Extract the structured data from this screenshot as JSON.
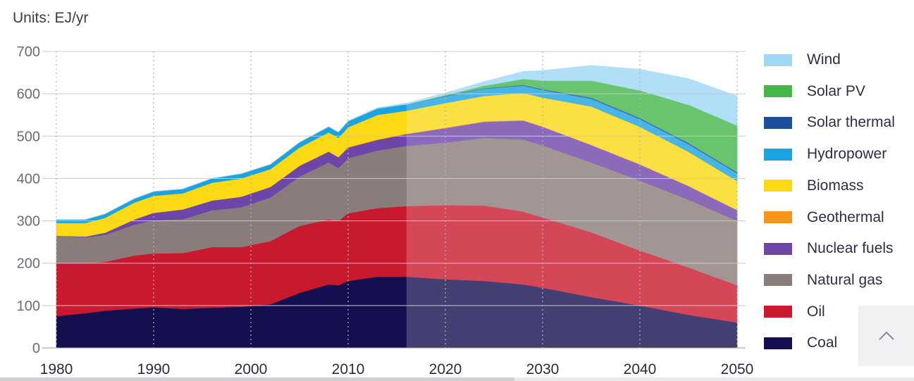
{
  "units_label": "Units: EJ/yr",
  "chart_data": {
    "type": "area",
    "stacked": true,
    "title": "",
    "units": "Units: EJ/yr",
    "xlabel": "",
    "ylabel": "",
    "xlim": [
      1980,
      2050
    ],
    "ylim": [
      0,
      700
    ],
    "x_ticks": [
      1980,
      1990,
      2000,
      2010,
      2020,
      2030,
      2040,
      2050
    ],
    "y_ticks": [
      0,
      100,
      200,
      300,
      400,
      500,
      600,
      700
    ],
    "forecast_start": 2016,
    "grid": true,
    "legend_position": "right",
    "x": [
      1980,
      1983,
      1985,
      1988,
      1990,
      1993,
      1996,
      1999,
      2002,
      2005,
      2008,
      2009,
      2010,
      2013,
      2016,
      2020,
      2024,
      2028,
      2030,
      2035,
      2040,
      2045,
      2050
    ],
    "series": [
      {
        "name": "Coal",
        "color": "#14104f",
        "values": [
          75,
          82,
          88,
          93,
          96,
          92,
          95,
          97,
          103,
          130,
          150,
          148,
          158,
          168,
          168,
          162,
          158,
          150,
          142,
          120,
          100,
          78,
          60
        ]
      },
      {
        "name": "Oil",
        "color": "#c8192e",
        "values": [
          125,
          118,
          115,
          125,
          127,
          132,
          143,
          141,
          149,
          158,
          153,
          152,
          160,
          162,
          167,
          175,
          178,
          172,
          166,
          153,
          130,
          112,
          88
        ]
      },
      {
        "name": "Natural gas",
        "color": "#8a7c7a",
        "values": [
          65,
          61,
          64,
          73,
          78,
          80,
          87,
          94,
          103,
          117,
          135,
          125,
          130,
          136,
          142,
          148,
          160,
          170,
          170,
          165,
          165,
          160,
          152
        ]
      },
      {
        "name": "Nuclear fuels",
        "color": "#6e45a8",
        "values": [
          0,
          2,
          5,
          12,
          18,
          23,
          23,
          25,
          25,
          25,
          25,
          25,
          25,
          25,
          28,
          34,
          38,
          45,
          44,
          41,
          38,
          32,
          25
        ]
      },
      {
        "name": "Geothermal",
        "color": "#f7941d",
        "values": [
          0,
          0,
          0,
          0,
          0,
          0,
          0,
          0,
          0,
          0,
          1,
          1,
          1,
          1,
          1,
          1,
          1,
          1,
          1,
          1,
          1,
          1,
          1
        ]
      },
      {
        "name": "Biomass",
        "color": "#fbd914",
        "values": [
          30,
          32,
          35,
          40,
          40,
          38,
          42,
          43,
          42,
          43,
          45,
          45,
          47,
          58,
          54,
          58,
          60,
          64,
          68,
          90,
          88,
          80,
          68
        ]
      },
      {
        "name": "Hydropower",
        "color": "#1aa3e0",
        "values": [
          8,
          8,
          9,
          9,
          10,
          10,
          10,
          11,
          11,
          12,
          13,
          13,
          14,
          15,
          15,
          16,
          17,
          17,
          18,
          18,
          18,
          18,
          18
        ]
      },
      {
        "name": "Solar thermal",
        "color": "#1c4e9a",
        "values": [
          0,
          0,
          0,
          0,
          0,
          0,
          0,
          0,
          0,
          0,
          0,
          0,
          0,
          0,
          0,
          1,
          1,
          2,
          2,
          3,
          3,
          3,
          3
        ]
      },
      {
        "name": "Solar PV",
        "color": "#43b649",
        "values": [
          0,
          0,
          0,
          0,
          0,
          0,
          0,
          0,
          0,
          0,
          0,
          0,
          0,
          0,
          0,
          2,
          6,
          14,
          20,
          40,
          65,
          90,
          110
        ]
      },
      {
        "name": "Wind",
        "color": "#9ed8f5",
        "values": [
          0,
          0,
          0,
          0,
          0,
          0,
          0,
          0,
          0,
          0,
          0,
          0,
          1,
          2,
          3,
          5,
          10,
          18,
          24,
          36,
          50,
          62,
          70
        ]
      }
    ]
  },
  "colors": {
    "forecast_overlay": "#ffffff",
    "grid": "#c8c8cc",
    "axis_text": "#6b6b78"
  },
  "scroll_top": {
    "icon": "chevron-up-icon"
  }
}
